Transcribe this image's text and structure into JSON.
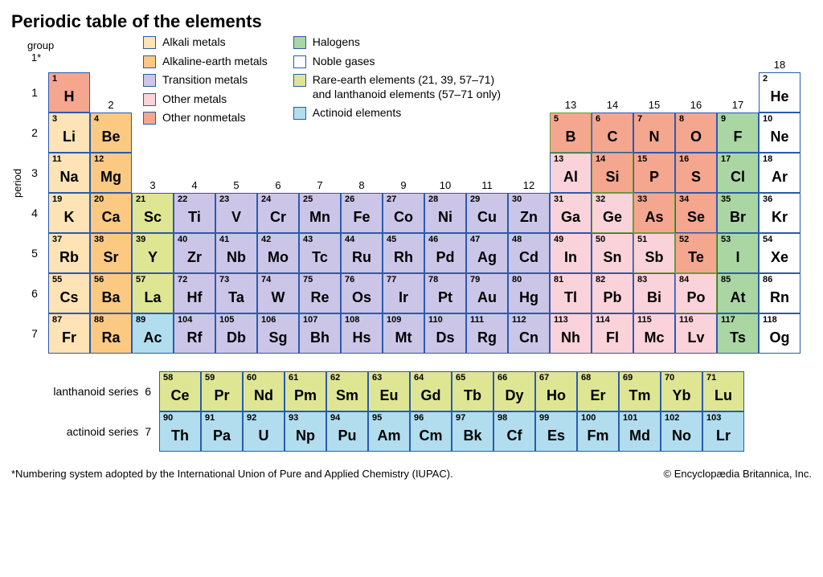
{
  "title": "Periodic table of the elements",
  "axis": {
    "period": "period",
    "group": "group\n1*"
  },
  "colors": {
    "alkali": "#fde3b5",
    "alkaline": "#fbc981",
    "transition": "#cbc6e8",
    "othermetal": "#fad2da",
    "othernonmetal": "#f5a68e",
    "halogen": "#aad6a3",
    "noble": "#ffffff",
    "rareearth": "#dee694",
    "actinoid": "#b1ddee",
    "border": "#2a5ab0",
    "green_border": "#6b9a3f"
  },
  "legend": {
    "col1": [
      {
        "label": "Alkali metals",
        "color": "alkali"
      },
      {
        "label": "Alkaline-earth metals",
        "color": "alkaline"
      },
      {
        "label": "Transition metals",
        "color": "transition"
      },
      {
        "label": "Other metals",
        "color": "othermetal"
      },
      {
        "label": "Other nonmetals",
        "color": "othernonmetal"
      }
    ],
    "col2": [
      {
        "label": "Halogens",
        "color": "halogen"
      },
      {
        "label": "Noble gases",
        "color": "noble"
      },
      {
        "label": "Rare-earth elements (21, 39, 57–71)\nand lanthanoid elements (57–71 only)",
        "color": "rareearth"
      },
      {
        "label": "Actinoid elements",
        "color": "actinoid"
      }
    ]
  },
  "groups_top": [
    "1",
    "2",
    "3",
    "4",
    "5",
    "6",
    "7",
    "8",
    "9",
    "10",
    "11",
    "12",
    "13",
    "14",
    "15",
    "16",
    "17",
    "18"
  ],
  "periods": [
    "1",
    "2",
    "3",
    "4",
    "5",
    "6",
    "7"
  ],
  "elements": [
    {
      "n": 1,
      "s": "H",
      "p": 1,
      "g": 1,
      "c": "othernonmetal"
    },
    {
      "n": 2,
      "s": "He",
      "p": 1,
      "g": 18,
      "c": "noble"
    },
    {
      "n": 3,
      "s": "Li",
      "p": 2,
      "g": 1,
      "c": "alkali"
    },
    {
      "n": 4,
      "s": "Be",
      "p": 2,
      "g": 2,
      "c": "alkaline"
    },
    {
      "n": 5,
      "s": "B",
      "p": 2,
      "g": 13,
      "c": "othernonmetal",
      "gb": true
    },
    {
      "n": 6,
      "s": "C",
      "p": 2,
      "g": 14,
      "c": "othernonmetal"
    },
    {
      "n": 7,
      "s": "N",
      "p": 2,
      "g": 15,
      "c": "othernonmetal"
    },
    {
      "n": 8,
      "s": "O",
      "p": 2,
      "g": 16,
      "c": "othernonmetal"
    },
    {
      "n": 9,
      "s": "F",
      "p": 2,
      "g": 17,
      "c": "halogen"
    },
    {
      "n": 10,
      "s": "Ne",
      "p": 2,
      "g": 18,
      "c": "noble"
    },
    {
      "n": 11,
      "s": "Na",
      "p": 3,
      "g": 1,
      "c": "alkali"
    },
    {
      "n": 12,
      "s": "Mg",
      "p": 3,
      "g": 2,
      "c": "alkaline"
    },
    {
      "n": 13,
      "s": "Al",
      "p": 3,
      "g": 13,
      "c": "othermetal"
    },
    {
      "n": 14,
      "s": "Si",
      "p": 3,
      "g": 14,
      "c": "othernonmetal",
      "gb": true
    },
    {
      "n": 15,
      "s": "P",
      "p": 3,
      "g": 15,
      "c": "othernonmetal"
    },
    {
      "n": 16,
      "s": "S",
      "p": 3,
      "g": 16,
      "c": "othernonmetal"
    },
    {
      "n": 17,
      "s": "Cl",
      "p": 3,
      "g": 17,
      "c": "halogen"
    },
    {
      "n": 18,
      "s": "Ar",
      "p": 3,
      "g": 18,
      "c": "noble"
    },
    {
      "n": 19,
      "s": "K",
      "p": 4,
      "g": 1,
      "c": "alkali"
    },
    {
      "n": 20,
      "s": "Ca",
      "p": 4,
      "g": 2,
      "c": "alkaline"
    },
    {
      "n": 21,
      "s": "Sc",
      "p": 4,
      "g": 3,
      "c": "rareearth"
    },
    {
      "n": 22,
      "s": "Ti",
      "p": 4,
      "g": 4,
      "c": "transition"
    },
    {
      "n": 23,
      "s": "V",
      "p": 4,
      "g": 5,
      "c": "transition"
    },
    {
      "n": 24,
      "s": "Cr",
      "p": 4,
      "g": 6,
      "c": "transition"
    },
    {
      "n": 25,
      "s": "Mn",
      "p": 4,
      "g": 7,
      "c": "transition"
    },
    {
      "n": 26,
      "s": "Fe",
      "p": 4,
      "g": 8,
      "c": "transition"
    },
    {
      "n": 27,
      "s": "Co",
      "p": 4,
      "g": 9,
      "c": "transition"
    },
    {
      "n": 28,
      "s": "Ni",
      "p": 4,
      "g": 10,
      "c": "transition"
    },
    {
      "n": 29,
      "s": "Cu",
      "p": 4,
      "g": 11,
      "c": "transition"
    },
    {
      "n": 30,
      "s": "Zn",
      "p": 4,
      "g": 12,
      "c": "transition"
    },
    {
      "n": 31,
      "s": "Ga",
      "p": 4,
      "g": 13,
      "c": "othermetal"
    },
    {
      "n": 32,
      "s": "Ge",
      "p": 4,
      "g": 14,
      "c": "othermetal",
      "gb": true
    },
    {
      "n": 33,
      "s": "As",
      "p": 4,
      "g": 15,
      "c": "othernonmetal",
      "gb": true
    },
    {
      "n": 34,
      "s": "Se",
      "p": 4,
      "g": 16,
      "c": "othernonmetal"
    },
    {
      "n": 35,
      "s": "Br",
      "p": 4,
      "g": 17,
      "c": "halogen"
    },
    {
      "n": 36,
      "s": "Kr",
      "p": 4,
      "g": 18,
      "c": "noble"
    },
    {
      "n": 37,
      "s": "Rb",
      "p": 5,
      "g": 1,
      "c": "alkali"
    },
    {
      "n": 38,
      "s": "Sr",
      "p": 5,
      "g": 2,
      "c": "alkaline"
    },
    {
      "n": 39,
      "s": "Y",
      "p": 5,
      "g": 3,
      "c": "rareearth"
    },
    {
      "n": 40,
      "s": "Zr",
      "p": 5,
      "g": 4,
      "c": "transition"
    },
    {
      "n": 41,
      "s": "Nb",
      "p": 5,
      "g": 5,
      "c": "transition"
    },
    {
      "n": 42,
      "s": "Mo",
      "p": 5,
      "g": 6,
      "c": "transition"
    },
    {
      "n": 43,
      "s": "Tc",
      "p": 5,
      "g": 7,
      "c": "transition"
    },
    {
      "n": 44,
      "s": "Ru",
      "p": 5,
      "g": 8,
      "c": "transition"
    },
    {
      "n": 45,
      "s": "Rh",
      "p": 5,
      "g": 9,
      "c": "transition"
    },
    {
      "n": 46,
      "s": "Pd",
      "p": 5,
      "g": 10,
      "c": "transition"
    },
    {
      "n": 47,
      "s": "Ag",
      "p": 5,
      "g": 11,
      "c": "transition"
    },
    {
      "n": 48,
      "s": "Cd",
      "p": 5,
      "g": 12,
      "c": "transition"
    },
    {
      "n": 49,
      "s": "In",
      "p": 5,
      "g": 13,
      "c": "othermetal"
    },
    {
      "n": 50,
      "s": "Sn",
      "p": 5,
      "g": 14,
      "c": "othermetal"
    },
    {
      "n": 51,
      "s": "Sb",
      "p": 5,
      "g": 15,
      "c": "othermetal",
      "gb": true
    },
    {
      "n": 52,
      "s": "Te",
      "p": 5,
      "g": 16,
      "c": "othernonmetal",
      "gb": true
    },
    {
      "n": 53,
      "s": "I",
      "p": 5,
      "g": 17,
      "c": "halogen"
    },
    {
      "n": 54,
      "s": "Xe",
      "p": 5,
      "g": 18,
      "c": "noble"
    },
    {
      "n": 55,
      "s": "Cs",
      "p": 6,
      "g": 1,
      "c": "alkali"
    },
    {
      "n": 56,
      "s": "Ba",
      "p": 6,
      "g": 2,
      "c": "alkaline"
    },
    {
      "n": 57,
      "s": "La",
      "p": 6,
      "g": 3,
      "c": "rareearth"
    },
    {
      "n": 72,
      "s": "Hf",
      "p": 6,
      "g": 4,
      "c": "transition"
    },
    {
      "n": 73,
      "s": "Ta",
      "p": 6,
      "g": 5,
      "c": "transition"
    },
    {
      "n": 74,
      "s": "W",
      "p": 6,
      "g": 6,
      "c": "transition"
    },
    {
      "n": 75,
      "s": "Re",
      "p": 6,
      "g": 7,
      "c": "transition"
    },
    {
      "n": 76,
      "s": "Os",
      "p": 6,
      "g": 8,
      "c": "transition"
    },
    {
      "n": 77,
      "s": "Ir",
      "p": 6,
      "g": 9,
      "c": "transition"
    },
    {
      "n": 78,
      "s": "Pt",
      "p": 6,
      "g": 10,
      "c": "transition"
    },
    {
      "n": 79,
      "s": "Au",
      "p": 6,
      "g": 11,
      "c": "transition"
    },
    {
      "n": 80,
      "s": "Hg",
      "p": 6,
      "g": 12,
      "c": "transition"
    },
    {
      "n": 81,
      "s": "Tl",
      "p": 6,
      "g": 13,
      "c": "othermetal"
    },
    {
      "n": 82,
      "s": "Pb",
      "p": 6,
      "g": 14,
      "c": "othermetal"
    },
    {
      "n": 83,
      "s": "Bi",
      "p": 6,
      "g": 15,
      "c": "othermetal"
    },
    {
      "n": 84,
      "s": "Po",
      "p": 6,
      "g": 16,
      "c": "othermetal",
      "gb": true
    },
    {
      "n": 85,
      "s": "At",
      "p": 6,
      "g": 17,
      "c": "halogen"
    },
    {
      "n": 86,
      "s": "Rn",
      "p": 6,
      "g": 18,
      "c": "noble"
    },
    {
      "n": 87,
      "s": "Fr",
      "p": 7,
      "g": 1,
      "c": "alkali"
    },
    {
      "n": 88,
      "s": "Ra",
      "p": 7,
      "g": 2,
      "c": "alkaline"
    },
    {
      "n": 89,
      "s": "Ac",
      "p": 7,
      "g": 3,
      "c": "actinoid"
    },
    {
      "n": 104,
      "s": "Rf",
      "p": 7,
      "g": 4,
      "c": "transition"
    },
    {
      "n": 105,
      "s": "Db",
      "p": 7,
      "g": 5,
      "c": "transition"
    },
    {
      "n": 106,
      "s": "Sg",
      "p": 7,
      "g": 6,
      "c": "transition"
    },
    {
      "n": 107,
      "s": "Bh",
      "p": 7,
      "g": 7,
      "c": "transition"
    },
    {
      "n": 108,
      "s": "Hs",
      "p": 7,
      "g": 8,
      "c": "transition"
    },
    {
      "n": 109,
      "s": "Mt",
      "p": 7,
      "g": 9,
      "c": "transition"
    },
    {
      "n": 110,
      "s": "Ds",
      "p": 7,
      "g": 10,
      "c": "transition"
    },
    {
      "n": 111,
      "s": "Rg",
      "p": 7,
      "g": 11,
      "c": "transition"
    },
    {
      "n": 112,
      "s": "Cn",
      "p": 7,
      "g": 12,
      "c": "transition"
    },
    {
      "n": 113,
      "s": "Nh",
      "p": 7,
      "g": 13,
      "c": "othermetal"
    },
    {
      "n": 114,
      "s": "Fl",
      "p": 7,
      "g": 14,
      "c": "othermetal"
    },
    {
      "n": 115,
      "s": "Mc",
      "p": 7,
      "g": 15,
      "c": "othermetal"
    },
    {
      "n": 116,
      "s": "Lv",
      "p": 7,
      "g": 16,
      "c": "othermetal"
    },
    {
      "n": 117,
      "s": "Ts",
      "p": 7,
      "g": 17,
      "c": "halogen"
    },
    {
      "n": 118,
      "s": "Og",
      "p": 7,
      "g": 18,
      "c": "noble"
    }
  ],
  "lanthanoids": [
    {
      "n": 58,
      "s": "Ce"
    },
    {
      "n": 59,
      "s": "Pr"
    },
    {
      "n": 60,
      "s": "Nd"
    },
    {
      "n": 61,
      "s": "Pm"
    },
    {
      "n": 62,
      "s": "Sm"
    },
    {
      "n": 63,
      "s": "Eu"
    },
    {
      "n": 64,
      "s": "Gd"
    },
    {
      "n": 65,
      "s": "Tb"
    },
    {
      "n": 66,
      "s": "Dy"
    },
    {
      "n": 67,
      "s": "Ho"
    },
    {
      "n": 68,
      "s": "Er"
    },
    {
      "n": 69,
      "s": "Tm"
    },
    {
      "n": 70,
      "s": "Yb"
    },
    {
      "n": 71,
      "s": "Lu"
    }
  ],
  "actinoids": [
    {
      "n": 90,
      "s": "Th"
    },
    {
      "n": 91,
      "s": "Pa"
    },
    {
      "n": 92,
      "s": "U"
    },
    {
      "n": 93,
      "s": "Np"
    },
    {
      "n": 94,
      "s": "Pu"
    },
    {
      "n": 95,
      "s": "Am"
    },
    {
      "n": 96,
      "s": "Cm"
    },
    {
      "n": 97,
      "s": "Bk"
    },
    {
      "n": 98,
      "s": "Cf"
    },
    {
      "n": 99,
      "s": "Es"
    },
    {
      "n": 100,
      "s": "Fm"
    },
    {
      "n": 101,
      "s": "Md"
    },
    {
      "n": 102,
      "s": "No"
    },
    {
      "n": 103,
      "s": "Lr"
    }
  ],
  "series_labels": {
    "lan": "lanthanoid series",
    "lan_n": "6",
    "act": "actinoid series",
    "act_n": "7"
  },
  "footer": {
    "note": "*Numbering system adopted by the International Union of Pure and Applied Chemistry (IUPAC).",
    "credit": "© Encyclopædia Britannica, Inc."
  }
}
